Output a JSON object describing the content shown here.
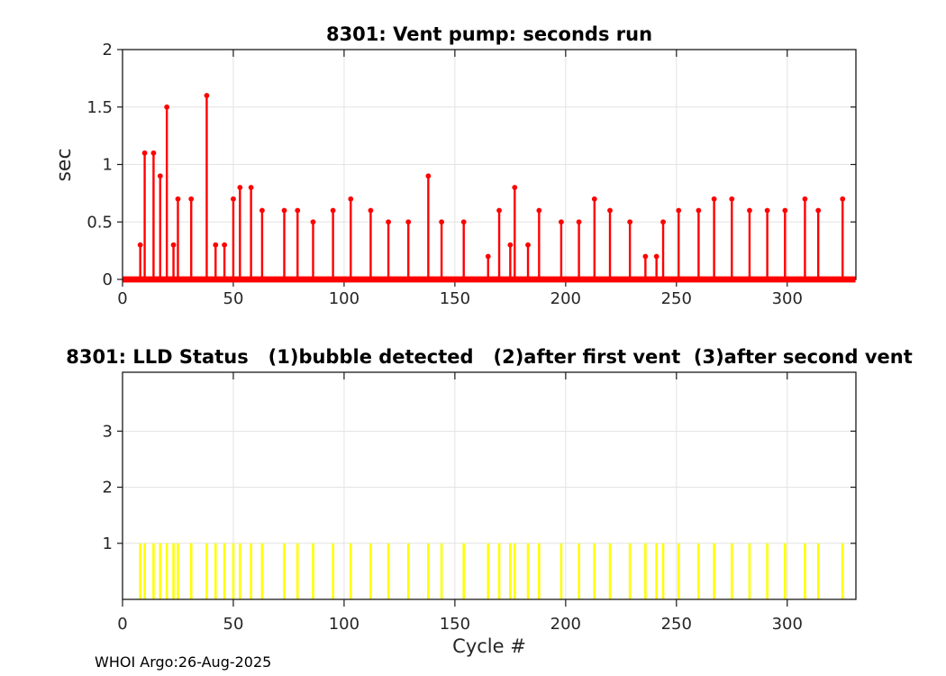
{
  "figure": {
    "watermark": "WHOI Argo:26-Aug-2025"
  },
  "chart_data": [
    {
      "type": "stem",
      "title": "8301: Vent pump: seconds run",
      "xlabel": "",
      "ylabel": "sec",
      "xlim": [
        0,
        331
      ],
      "ylim": [
        0,
        2
      ],
      "xticks": [
        0,
        50,
        100,
        150,
        200,
        250,
        300
      ],
      "yticks": [
        0,
        0.5,
        1,
        1.5,
        2
      ],
      "grid": true,
      "color": "#ff0000",
      "baseline_value": 0,
      "baseline_x_range": [
        1,
        330
      ],
      "x": [
        8,
        10,
        14,
        17,
        20,
        23,
        25,
        31,
        38,
        42,
        46,
        50,
        53,
        58,
        63,
        73,
        79,
        86,
        95,
        103,
        112,
        120,
        129,
        138,
        144,
        154,
        165,
        170,
        175,
        177,
        183,
        188,
        198,
        206,
        213,
        220,
        229,
        236,
        241,
        244,
        251,
        260,
        267,
        275,
        283,
        291,
        299,
        308,
        314,
        325
      ],
      "y": [
        0.3,
        1.1,
        1.1,
        0.9,
        1.5,
        0.3,
        0.7,
        0.7,
        1.6,
        0.3,
        0.3,
        0.7,
        0.8,
        0.8,
        0.6,
        0.6,
        0.6,
        0.5,
        0.6,
        0.7,
        0.6,
        0.5,
        0.5,
        0.9,
        0.5,
        0.5,
        0.2,
        0.6,
        0.3,
        0.8,
        0.3,
        0.6,
        0.5,
        0.5,
        0.7,
        0.6,
        0.5,
        0.2,
        0.2,
        0.5,
        0.6,
        0.6,
        0.7,
        0.7,
        0.6,
        0.6,
        0.6,
        0.7,
        0.6,
        0.7
      ]
    },
    {
      "type": "bar",
      "title": "8301: LLD Status   (1)bubble detected   (2)after first vent  (3)after second vent",
      "xlabel": "Cycle #",
      "ylabel": "",
      "xlim": [
        0,
        331
      ],
      "ylim": [
        0,
        4.05
      ],
      "xticks": [
        0,
        50,
        100,
        150,
        200,
        250,
        300
      ],
      "yticks": [
        1,
        2,
        3
      ],
      "grid": true,
      "color": "#ffff00",
      "x": [
        8,
        10,
        14,
        17,
        20,
        23,
        25,
        31,
        38,
        42,
        46,
        50,
        53,
        58,
        63,
        73,
        79,
        86,
        95,
        103,
        112,
        120,
        129,
        138,
        144,
        154,
        165,
        170,
        175,
        177,
        183,
        188,
        198,
        206,
        213,
        220,
        229,
        236,
        241,
        244,
        251,
        260,
        267,
        275,
        283,
        291,
        299,
        308,
        314,
        325
      ],
      "values": [
        1,
        1,
        1,
        1,
        1,
        1,
        1,
        1,
        1,
        1,
        1,
        1,
        1,
        1,
        1,
        1,
        1,
        1,
        1,
        1,
        1,
        1,
        1,
        1,
        1,
        1,
        1,
        1,
        1,
        1,
        1,
        1,
        1,
        1,
        1,
        1,
        1,
        1,
        1,
        1,
        1,
        1,
        1,
        1,
        1,
        1,
        1,
        1,
        1,
        1
      ]
    }
  ]
}
